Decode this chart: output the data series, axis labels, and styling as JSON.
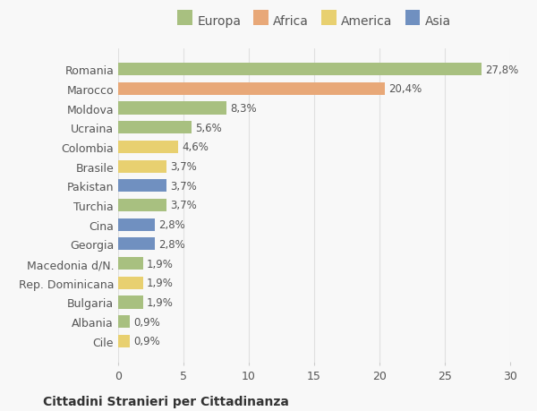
{
  "countries": [
    "Romania",
    "Marocco",
    "Moldova",
    "Ucraina",
    "Colombia",
    "Brasile",
    "Pakistan",
    "Turchia",
    "Cina",
    "Georgia",
    "Macedonia d/N.",
    "Rep. Dominicana",
    "Bulgaria",
    "Albania",
    "Cile"
  ],
  "values": [
    27.8,
    20.4,
    8.3,
    5.6,
    4.6,
    3.7,
    3.7,
    3.7,
    2.8,
    2.8,
    1.9,
    1.9,
    1.9,
    0.9,
    0.9
  ],
  "labels": [
    "27,8%",
    "20,4%",
    "8,3%",
    "5,6%",
    "4,6%",
    "3,7%",
    "3,7%",
    "3,7%",
    "2,8%",
    "2,8%",
    "1,9%",
    "1,9%",
    "1,9%",
    "0,9%",
    "0,9%"
  ],
  "continents": [
    "Europa",
    "Africa",
    "Europa",
    "Europa",
    "America",
    "America",
    "Asia",
    "Europa",
    "Asia",
    "Asia",
    "Europa",
    "America",
    "Europa",
    "Europa",
    "America"
  ],
  "colors": {
    "Europa": "#a8c080",
    "Africa": "#e8a878",
    "America": "#e8d070",
    "Asia": "#7090c0"
  },
  "legend_order": [
    "Europa",
    "Africa",
    "America",
    "Asia"
  ],
  "title": "Cittadini Stranieri per Cittadinanza",
  "xlim": [
    0,
    30
  ],
  "xticks": [
    0,
    5,
    10,
    15,
    20,
    25,
    30
  ],
  "bg_color": "#f8f8f8",
  "grid_color": "#e0e0e0"
}
